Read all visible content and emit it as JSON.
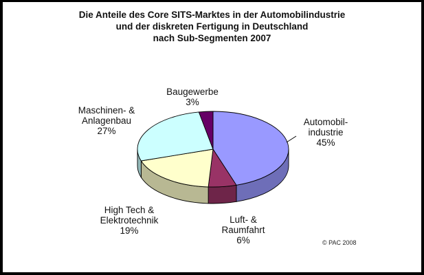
{
  "chart_data": {
    "type": "pie",
    "title_lines": [
      "Die Anteile des Core SITS-Marktes in der Automobilindustrie",
      "und der diskreten Fertigung in Deutschland",
      "nach Sub-Segmenten 2007"
    ],
    "slices": [
      {
        "label_lines": [
          "Automobil-",
          "industrie"
        ],
        "value_label": "45%",
        "value": 45,
        "color": "#9999FF"
      },
      {
        "label_lines": [
          "Luft- &",
          "Raumfahrt"
        ],
        "value_label": "6%",
        "value": 6,
        "color": "#993366"
      },
      {
        "label_lines": [
          "High Tech &",
          "Elektrotechnik"
        ],
        "value_label": "19%",
        "value": 19,
        "color": "#FFFFCC"
      },
      {
        "label_lines": [
          "Maschinen- &",
          "Anlagenbau"
        ],
        "value_label": "27%",
        "value": 27,
        "color": "#CCFFFF"
      },
      {
        "label_lines": [
          "Baugewerbe"
        ],
        "value_label": "3%",
        "value": 3,
        "color": "#660066"
      }
    ],
    "style": "3d-pie",
    "legend": "none"
  },
  "copyright": "© PAC 2008"
}
